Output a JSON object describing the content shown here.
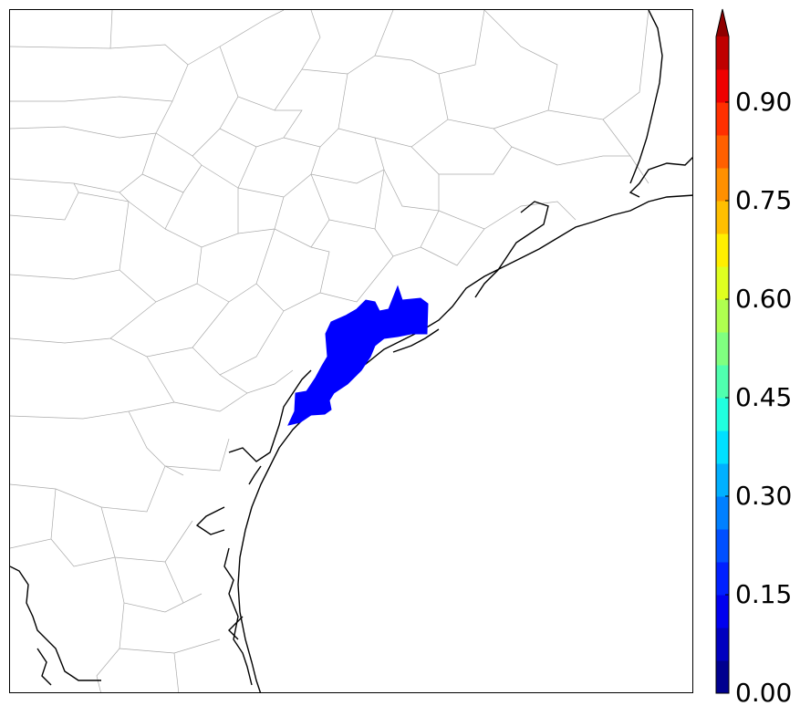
{
  "map": {
    "region": "Texas Gulf Coast county map",
    "shaded_area_color": "#0000ff",
    "coastline_color": "#000000",
    "county_border_color": "#aaaaaa",
    "water_color": "#ffffff"
  },
  "colorbar": {
    "min": 0.0,
    "max": 1.0,
    "extend": "max",
    "ticks": [
      {
        "value": 0.0,
        "label": "0.00"
      },
      {
        "value": 0.15,
        "label": "0.15"
      },
      {
        "value": 0.3,
        "label": "0.30"
      },
      {
        "value": 0.45,
        "label": "0.45"
      },
      {
        "value": 0.6,
        "label": "0.60"
      },
      {
        "value": 0.75,
        "label": "0.75"
      },
      {
        "value": 0.9,
        "label": "0.90"
      }
    ],
    "colors": [
      "#00008f",
      "#0000bf",
      "#0000ef",
      "#0020ff",
      "#0050ff",
      "#0080ff",
      "#00b0ff",
      "#00e0ff",
      "#20ffdf",
      "#50ffaf",
      "#80ff80",
      "#afff50",
      "#dfff20",
      "#ffef00",
      "#ffbf00",
      "#ff9000",
      "#ff6000",
      "#ff3000",
      "#ef0000",
      "#bf0000",
      "#8f0000"
    ]
  }
}
